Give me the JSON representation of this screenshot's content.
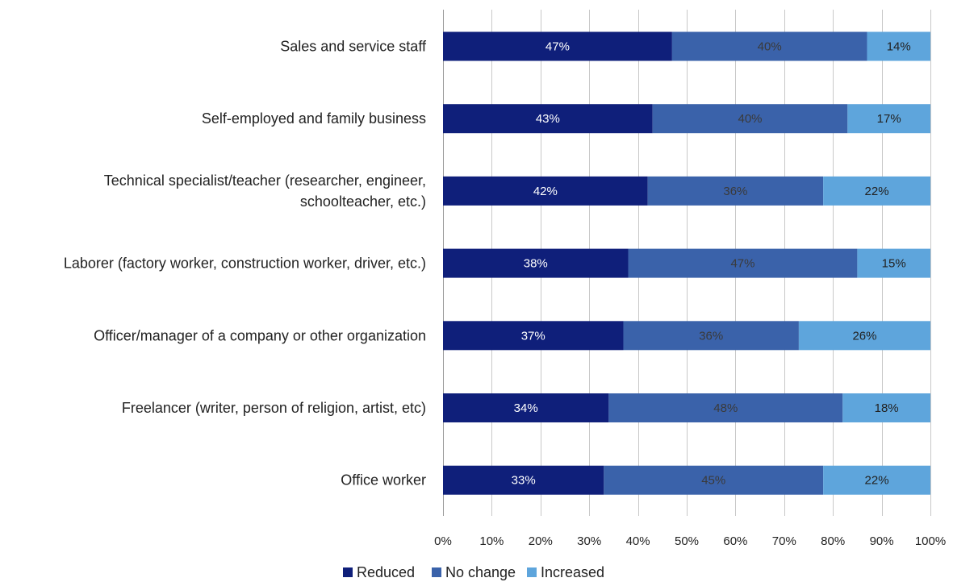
{
  "chart_data": {
    "type": "bar",
    "orientation": "horizontal",
    "stacked": true,
    "percent_stacked": true,
    "categories": [
      [
        "Sales and service staff"
      ],
      [
        "Self-employed and family business"
      ],
      [
        "Technical specialist/teacher (researcher, engineer,",
        "schoolteacher, etc.)"
      ],
      [
        "Laborer (factory worker, construction worker, driver, etc.)"
      ],
      [
        "Officer/manager of a company or other organization"
      ],
      [
        "Freelancer (writer, person of religion, artist, etc)"
      ],
      [
        "Office worker"
      ]
    ],
    "series": [
      {
        "name": "Reduced",
        "color": "#0f1f7a",
        "label_color": "#ffffff",
        "values": [
          47,
          43,
          42,
          38,
          37,
          34,
          33
        ]
      },
      {
        "name": "No change",
        "color": "#3a62aa",
        "label_color": "#3a3a3a",
        "values": [
          40,
          40,
          36,
          47,
          36,
          48,
          45
        ]
      },
      {
        "name": "Increased",
        "color": "#5ea5dc",
        "label_color": "#222222",
        "values": [
          14,
          17,
          22,
          15,
          26,
          18,
          22
        ]
      }
    ],
    "x_ticks": [
      "0%",
      "10%",
      "20%",
      "30%",
      "40%",
      "50%",
      "60%",
      "70%",
      "80%",
      "90%",
      "100%"
    ],
    "xlim": [
      0,
      100
    ],
    "grid": true,
    "legend_position": "bottom",
    "title": "",
    "xlabel": "",
    "ylabel": ""
  }
}
